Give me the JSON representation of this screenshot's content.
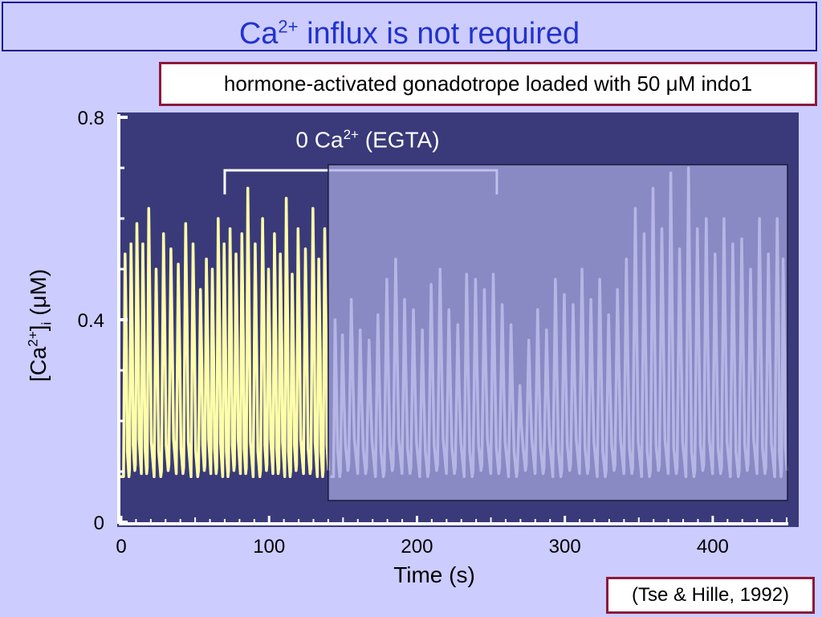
{
  "slide": {
    "title_prefix": "Ca",
    "title_sup": "2+",
    "title_suffix": " influx is not required",
    "subtitle": "hormone-activated gonadotrope loaded with 50 μM indo1",
    "citation": "(Tse & Hille, 1992)"
  },
  "chart_data": {
    "type": "line",
    "xlabel": "Time (s)",
    "ylabel_main": "[Ca",
    "ylabel_sup": "2+",
    "ylabel_close": "]",
    "ylabel_sub": "i",
    "ylabel_unit": " (μM)",
    "xlim": [
      0,
      450
    ],
    "ylim": [
      0,
      0.8
    ],
    "xticks": [
      0,
      100,
      200,
      300,
      400
    ],
    "yticks": [
      0,
      0.4,
      0.8
    ],
    "xtick_labels": [
      "0",
      "100",
      "200",
      "300",
      "400"
    ],
    "ytick_labels": [
      "0",
      "0.4",
      "0.8"
    ],
    "annotation": {
      "label_prefix": "0 Ca",
      "label_sup": "2+",
      "label_suffix": " (EGTA)",
      "x_start": 70,
      "x_end": 254
    },
    "overlay_start_x": 140,
    "baseline": 0.09,
    "series": [
      {
        "color": "#ffffaa",
        "peaks": [
          {
            "x": 3,
            "y": 0.53
          },
          {
            "x": 7,
            "y": 0.55
          },
          {
            "x": 11,
            "y": 0.59
          },
          {
            "x": 15,
            "y": 0.55
          },
          {
            "x": 19,
            "y": 0.62
          },
          {
            "x": 24,
            "y": 0.5
          },
          {
            "x": 29,
            "y": 0.57
          },
          {
            "x": 34,
            "y": 0.54
          },
          {
            "x": 39,
            "y": 0.51
          },
          {
            "x": 44,
            "y": 0.59
          },
          {
            "x": 49,
            "y": 0.55
          },
          {
            "x": 54,
            "y": 0.46
          },
          {
            "x": 58,
            "y": 0.52
          },
          {
            "x": 62,
            "y": 0.5
          },
          {
            "x": 66,
            "y": 0.6
          },
          {
            "x": 70,
            "y": 0.55
          },
          {
            "x": 74,
            "y": 0.58
          },
          {
            "x": 78,
            "y": 0.53
          },
          {
            "x": 82,
            "y": 0.57
          },
          {
            "x": 86,
            "y": 0.66
          },
          {
            "x": 91,
            "y": 0.55
          },
          {
            "x": 96,
            "y": 0.6
          },
          {
            "x": 100,
            "y": 0.5
          },
          {
            "x": 104,
            "y": 0.57
          },
          {
            "x": 108,
            "y": 0.53
          },
          {
            "x": 112,
            "y": 0.64
          },
          {
            "x": 116,
            "y": 0.49
          },
          {
            "x": 120,
            "y": 0.58
          },
          {
            "x": 125,
            "y": 0.54
          },
          {
            "x": 130,
            "y": 0.62
          },
          {
            "x": 134,
            "y": 0.52
          },
          {
            "x": 138,
            "y": 0.58
          }
        ]
      },
      {
        "color": "#dcdcf4",
        "peaks": [
          {
            "x": 145,
            "y": 0.4
          },
          {
            "x": 150,
            "y": 0.37
          },
          {
            "x": 156,
            "y": 0.44
          },
          {
            "x": 162,
            "y": 0.38
          },
          {
            "x": 168,
            "y": 0.36
          },
          {
            "x": 174,
            "y": 0.41
          },
          {
            "x": 180,
            "y": 0.48
          },
          {
            "x": 186,
            "y": 0.52
          },
          {
            "x": 192,
            "y": 0.44
          },
          {
            "x": 198,
            "y": 0.42
          },
          {
            "x": 204,
            "y": 0.38
          },
          {
            "x": 210,
            "y": 0.47
          },
          {
            "x": 216,
            "y": 0.5
          },
          {
            "x": 222,
            "y": 0.42
          },
          {
            "x": 228,
            "y": 0.39
          },
          {
            "x": 234,
            "y": 0.49
          },
          {
            "x": 240,
            "y": 0.48
          },
          {
            "x": 246,
            "y": 0.46
          },
          {
            "x": 252,
            "y": 0.49
          },
          {
            "x": 258,
            "y": 0.43
          },
          {
            "x": 264,
            "y": 0.39
          },
          {
            "x": 270,
            "y": 0.27
          },
          {
            "x": 276,
            "y": 0.36
          },
          {
            "x": 282,
            "y": 0.42
          },
          {
            "x": 288,
            "y": 0.38
          },
          {
            "x": 294,
            "y": 0.48
          },
          {
            "x": 300,
            "y": 0.45
          },
          {
            "x": 306,
            "y": 0.43
          },
          {
            "x": 312,
            "y": 0.5
          },
          {
            "x": 318,
            "y": 0.44
          },
          {
            "x": 324,
            "y": 0.48
          },
          {
            "x": 330,
            "y": 0.41
          },
          {
            "x": 336,
            "y": 0.46
          },
          {
            "x": 342,
            "y": 0.52
          },
          {
            "x": 348,
            "y": 0.62
          },
          {
            "x": 354,
            "y": 0.57
          },
          {
            "x": 360,
            "y": 0.66
          },
          {
            "x": 366,
            "y": 0.58
          },
          {
            "x": 372,
            "y": 0.69
          },
          {
            "x": 378,
            "y": 0.54
          },
          {
            "x": 384,
            "y": 0.7
          },
          {
            "x": 390,
            "y": 0.58
          },
          {
            "x": 396,
            "y": 0.6
          },
          {
            "x": 402,
            "y": 0.53
          },
          {
            "x": 408,
            "y": 0.6
          },
          {
            "x": 414,
            "y": 0.55
          },
          {
            "x": 420,
            "y": 0.56
          },
          {
            "x": 426,
            "y": 0.5
          },
          {
            "x": 432,
            "y": 0.6
          },
          {
            "x": 438,
            "y": 0.53
          },
          {
            "x": 444,
            "y": 0.6
          },
          {
            "x": 448,
            "y": 0.52
          }
        ]
      }
    ],
    "colors": {
      "panel_bg": "#3a3a7a",
      "axis": "#ffffff",
      "overlay_fill": "#a8a8e0",
      "overlay_stroke": "#1a1a40"
    }
  }
}
